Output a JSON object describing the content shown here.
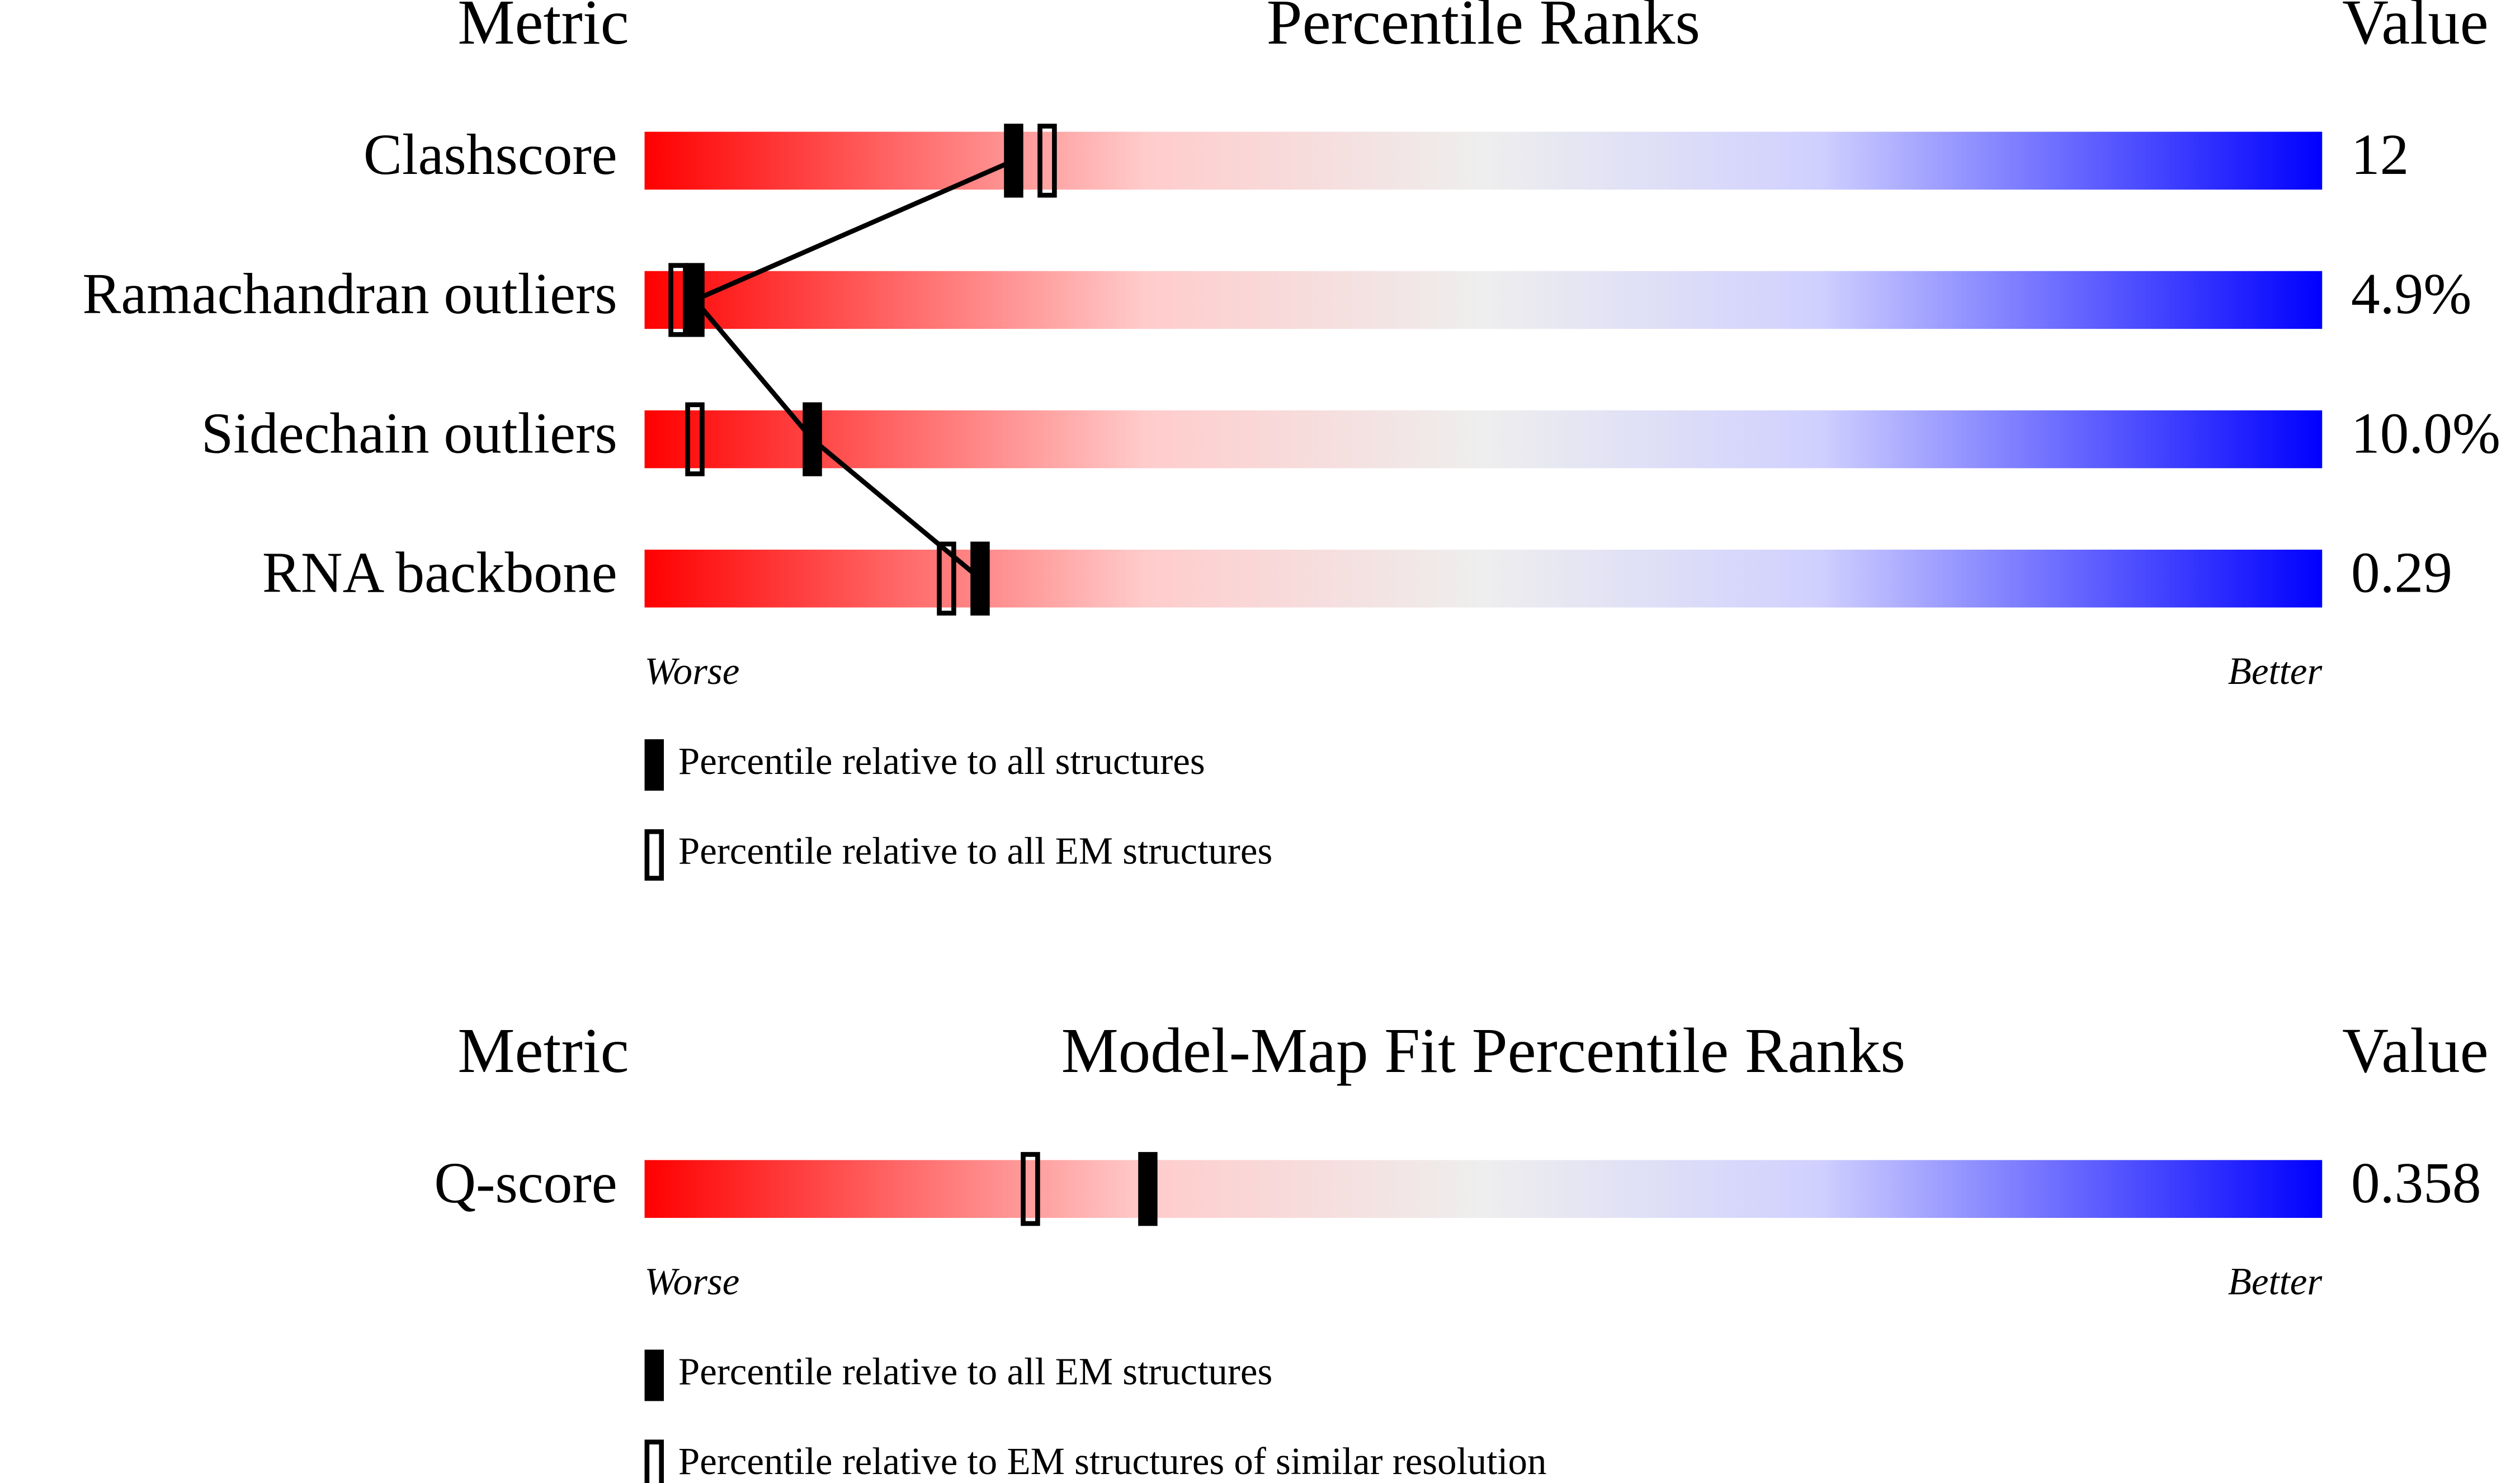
{
  "chart_data": [
    {
      "type": "slider",
      "headers": {
        "metric": "Metric",
        "title": "Percentile Ranks",
        "value": "Value"
      },
      "categories": [
        "Clashscore",
        "Ramachandran outliers",
        "Sidechain outliers",
        "RNA backbone"
      ],
      "metric_values": [
        "12",
        "4.9%",
        "10.0%",
        "0.29"
      ],
      "xlim": [
        0,
        100
      ],
      "axis_labels": {
        "low": "Worse",
        "high": "Better"
      },
      "series": [
        {
          "name": "Percentile relative to all structures",
          "color": "#000000",
          "style": "filled",
          "connected": true,
          "values": [
            22,
            3,
            10,
            20
          ]
        },
        {
          "name": "Percentile relative to all EM structures",
          "color": "#000000",
          "style": "open",
          "connected": false,
          "values": [
            24,
            2,
            3,
            18
          ]
        }
      ]
    },
    {
      "type": "slider",
      "headers": {
        "metric": "Metric",
        "title": "Model-Map Fit Percentile Ranks",
        "value": "Value"
      },
      "categories": [
        "Q-score"
      ],
      "metric_values": [
        "0.358"
      ],
      "xlim": [
        0,
        100
      ],
      "axis_labels": {
        "low": "Worse",
        "high": "Better"
      },
      "series": [
        {
          "name": "Percentile relative to all EM structures",
          "color": "#000000",
          "style": "filled",
          "connected": false,
          "values": [
            30
          ]
        },
        {
          "name": "Percentile relative to EM structures of similar resolution",
          "color": "#000000",
          "style": "open",
          "connected": false,
          "values": [
            23
          ]
        }
      ]
    }
  ]
}
